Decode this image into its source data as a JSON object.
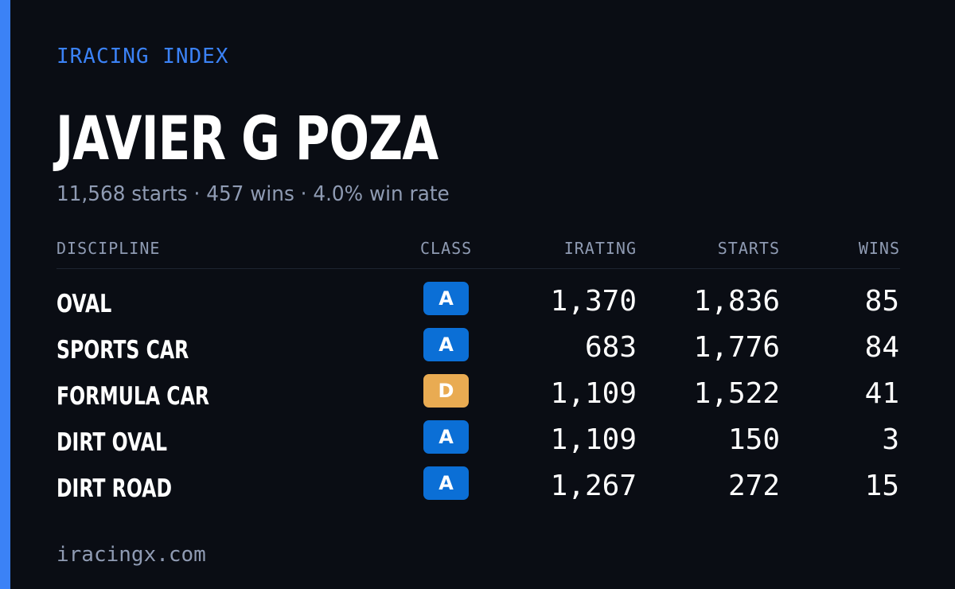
{
  "brand": "IRACING INDEX",
  "driver": {
    "name": "JAVIER G POZA",
    "summary": "11,568 starts · 457 wins · 4.0% win rate"
  },
  "colors": {
    "accent": "#3b82f6",
    "background": "#0a0d14",
    "class_A": "#0b6fd6",
    "class_D": "#e9ab52"
  },
  "table": {
    "headers": {
      "discipline": "DISCIPLINE",
      "class": "CLASS",
      "irating": "IRATING",
      "starts": "STARTS",
      "wins": "WINS"
    },
    "rows": [
      {
        "discipline": "OVAL",
        "class": "A",
        "irating": "1,370",
        "starts": "1,836",
        "wins": "85"
      },
      {
        "discipline": "SPORTS CAR",
        "class": "A",
        "irating": "683",
        "starts": "1,776",
        "wins": "84"
      },
      {
        "discipline": "FORMULA CAR",
        "class": "D",
        "irating": "1,109",
        "starts": "1,522",
        "wins": "41"
      },
      {
        "discipline": "DIRT OVAL",
        "class": "A",
        "irating": "1,109",
        "starts": "150",
        "wins": "3"
      },
      {
        "discipline": "DIRT ROAD",
        "class": "A",
        "irating": "1,267",
        "starts": "272",
        "wins": "15"
      }
    ]
  },
  "footer": "iracingx.com"
}
